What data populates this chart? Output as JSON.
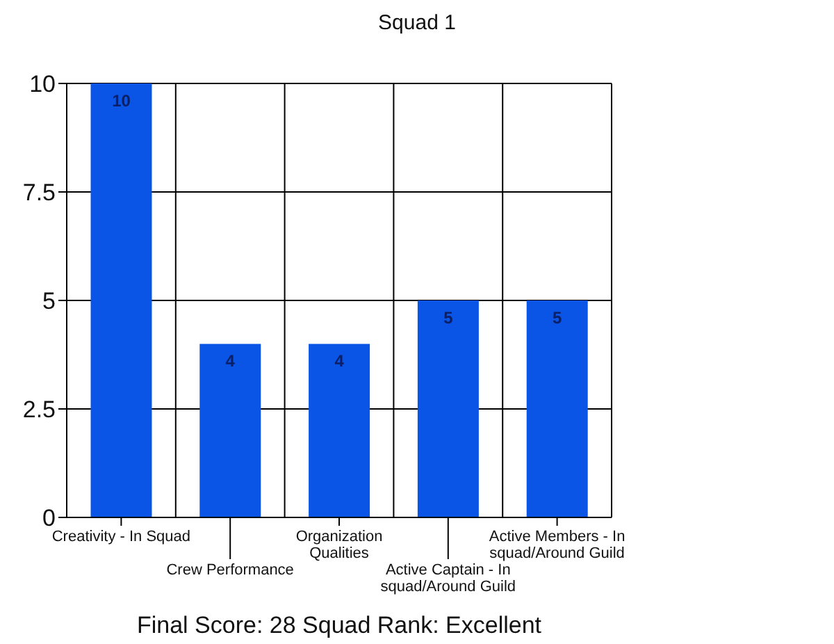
{
  "chart_data": {
    "type": "bar",
    "title": "Squad 1",
    "xlabel": "Final Score: 28 Squad Rank: Excellent",
    "categories": [
      "Creativity - In Squad",
      "Crew Performance",
      "Organization Qualities",
      "Active Captain - In squad/Around Guild",
      "Active Members - In squad/Around Guild"
    ],
    "values": [
      10,
      4,
      4,
      5,
      5
    ],
    "color": "#0a55e6",
    "ylim": [
      0,
      10
    ],
    "yticks": [
      0,
      2.5,
      5,
      7.5,
      10
    ],
    "grid": true,
    "data_labels": true
  }
}
